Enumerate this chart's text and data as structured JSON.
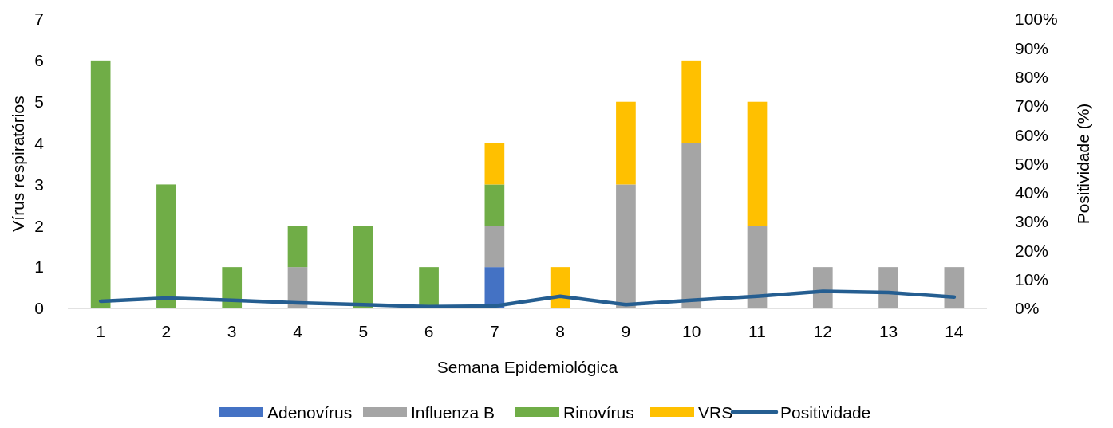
{
  "chart_data": {
    "type": "bar",
    "stacked": true,
    "xlabel": "Semana Epidemiológica",
    "ylabel": "Vírus respiratórios",
    "y2label": "Positividade (%)",
    "categories": [
      "1",
      "2",
      "3",
      "4",
      "5",
      "6",
      "7",
      "8",
      "9",
      "10",
      "11",
      "12",
      "13",
      "14"
    ],
    "series": [
      {
        "name": "Adenovírus",
        "color": "#4472c4",
        "values": [
          0,
          0,
          0,
          0,
          0,
          0,
          1,
          0,
          0,
          0,
          0,
          0,
          0,
          0
        ]
      },
      {
        "name": "Influenza B",
        "color": "#a5a5a5",
        "values": [
          0,
          0,
          0,
          1,
          0,
          0,
          1,
          0,
          3,
          4,
          2,
          1,
          1,
          1
        ]
      },
      {
        "name": "Rinovírus",
        "color": "#70ad47",
        "values": [
          6,
          3,
          1,
          1,
          2,
          1,
          1,
          0,
          0,
          0,
          0,
          0,
          0,
          0
        ]
      },
      {
        "name": "VRS",
        "color": "#ffc000",
        "values": [
          0,
          0,
          0,
          0,
          0,
          0,
          1,
          1,
          2,
          2,
          3,
          0,
          0,
          0
        ]
      },
      {
        "name": "Positividade",
        "type": "line",
        "axis": "y2",
        "color": "#255e91",
        "values": [
          2.5,
          3.6,
          2.8,
          1.9,
          1.3,
          0.6,
          0.8,
          4.2,
          1.3,
          2.8,
          4.2,
          5.9,
          5.5,
          3.9
        ]
      }
    ],
    "ylim": [
      0,
      7
    ],
    "yticks": [
      0,
      1,
      2,
      3,
      4,
      5,
      6,
      7
    ],
    "y2lim": [
      0,
      100
    ],
    "y2ticks": [
      {
        "value": 0,
        "label": "0%"
      },
      {
        "value": 10,
        "label": "10%"
      },
      {
        "value": 20,
        "label": "20%"
      },
      {
        "value": 30,
        "label": "30%"
      },
      {
        "value": 40,
        "label": "40%"
      },
      {
        "value": 50,
        "label": "50%"
      },
      {
        "value": 60,
        "label": "60%"
      },
      {
        "value": 70,
        "label": "70%"
      },
      {
        "value": 80,
        "label": "80%"
      },
      {
        "value": 90,
        "label": "90%"
      },
      {
        "value": 100,
        "label": "100%"
      }
    ],
    "legend": "bottom",
    "grid": false
  }
}
